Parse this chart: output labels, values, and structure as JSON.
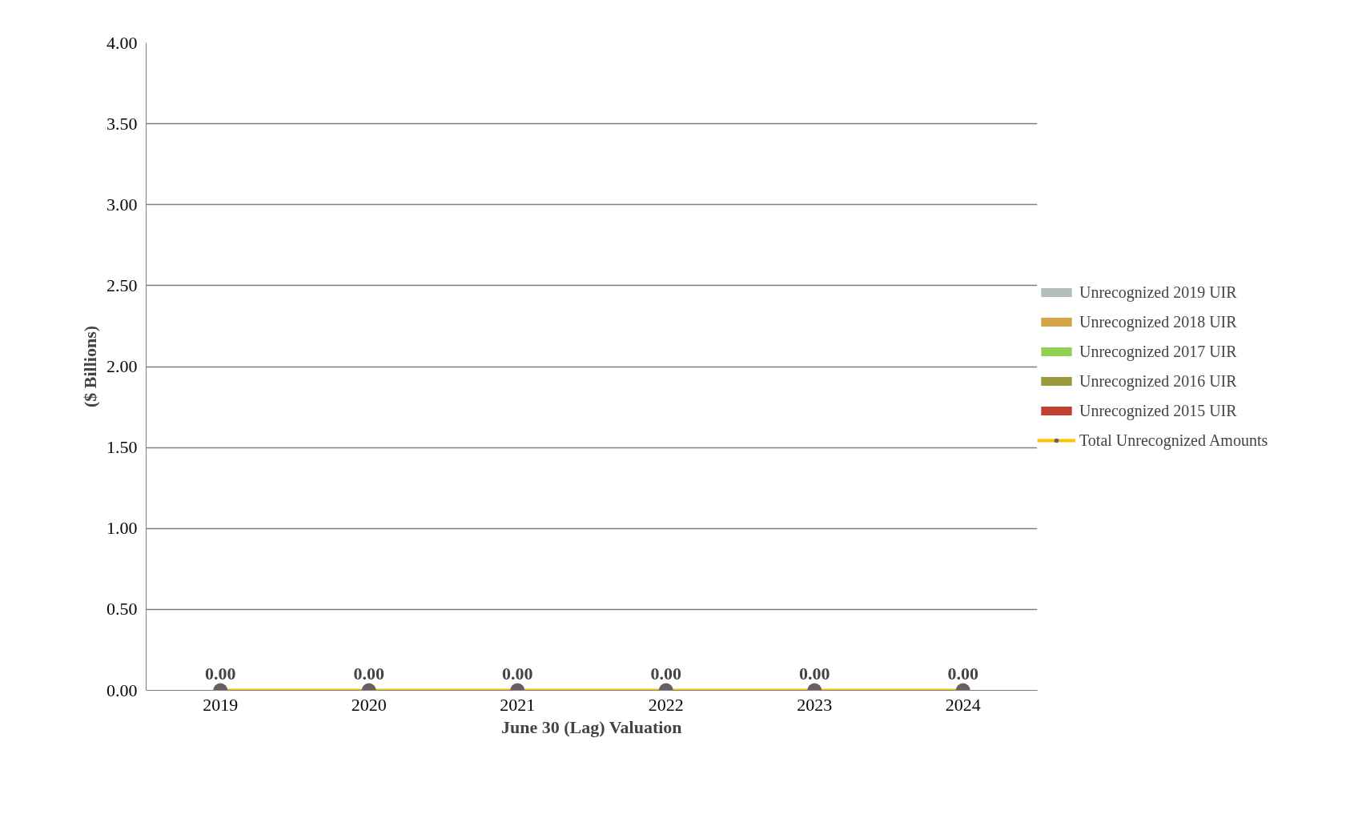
{
  "chart_data": {
    "type": "bar",
    "xlabel": "June 30 (Lag) Valuation",
    "ylabel": "($ Billions)",
    "categories": [
      "2019",
      "2020",
      "2021",
      "2022",
      "2023",
      "2024"
    ],
    "series": [
      {
        "name": "Unrecognized 2019 UIR",
        "color": "#b2bfb8",
        "values": [
          0,
          0,
          0,
          0,
          0,
          0
        ]
      },
      {
        "name": "Unrecognized 2018 UIR",
        "color": "#d4a548",
        "values": [
          0,
          0,
          0,
          0,
          0,
          0
        ]
      },
      {
        "name": "Unrecognized 2017 UIR",
        "color": "#92d050",
        "values": [
          0,
          0,
          0,
          0,
          0,
          0
        ]
      },
      {
        "name": "Unrecognized 2016 UIR",
        "color": "#9a9a3c",
        "values": [
          0,
          0,
          0,
          0,
          0,
          0
        ]
      },
      {
        "name": "Unrecognized 2015 UIR",
        "color": "#c0402f",
        "values": [
          0,
          0,
          0,
          0,
          0,
          0
        ]
      },
      {
        "name": "Total Unrecognized Amounts",
        "type": "line",
        "color": "#ffc000",
        "colors": [
          "#6b5e62",
          "#6b5e62",
          "#6b5e62",
          "#6b5e62",
          "#6b5e62",
          "#6b5e62"
        ],
        "values": [
          0,
          0,
          0,
          0,
          0,
          0
        ],
        "value_labels": [
          "0.00",
          "0.00",
          "0.00",
          "0.00",
          "0.00",
          "0.00"
        ]
      }
    ],
    "ylim": [
      0,
      4
    ],
    "yticks": [
      {
        "value": 0,
        "label": "0.00"
      },
      {
        "value": 0.5,
        "label": "0.50"
      },
      {
        "value": 1,
        "label": "1.00"
      },
      {
        "value": 1.5,
        "label": "1.50"
      },
      {
        "value": 2,
        "label": "2.00"
      },
      {
        "value": 2.5,
        "label": "2.50"
      },
      {
        "value": 3,
        "label": "3.00"
      },
      {
        "value": 3.5,
        "label": "3.50"
      },
      {
        "value": 4,
        "label": "4.00"
      }
    ],
    "grid": "y",
    "legend": "right",
    "marker": "circle"
  }
}
